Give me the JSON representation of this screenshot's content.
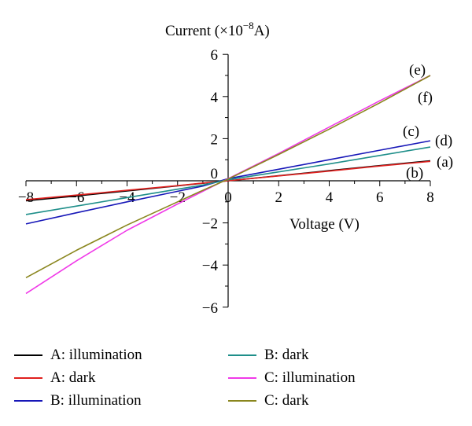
{
  "chart_data": {
    "type": "line",
    "ylabel": "Current (×10",
    "ylabel_exponent": "−8",
    "ylabel_unit": "A)",
    "xlabel": "Voltage (V)",
    "xlim": [
      -8,
      8
    ],
    "ylim": [
      -6,
      6
    ],
    "x_ticks": [
      -8,
      -6,
      -4,
      -2,
      0,
      2,
      4,
      6,
      8
    ],
    "x_tick_labels": [
      "−8",
      "−6",
      "−4",
      "−2",
      "0",
      "2",
      "4",
      "6",
      "8"
    ],
    "y_ticks": [
      -6,
      -4,
      -2,
      2,
      4,
      6
    ],
    "y_tick_labels": [
      "−6",
      "−4",
      "−2",
      "2",
      "4",
      "6"
    ],
    "y_zero_label": "0",
    "grid": false,
    "legend_position": "bottom",
    "series": [
      {
        "name": "A: illumination",
        "color": "#000000",
        "tag": "(a)",
        "x": [
          -8,
          -6,
          -4,
          -2,
          -1,
          0,
          2,
          4,
          6,
          8
        ],
        "y": [
          -0.95,
          -0.72,
          -0.48,
          -0.24,
          -0.12,
          0.0,
          0.24,
          0.48,
          0.72,
          0.95
        ]
      },
      {
        "name": "A: dark",
        "color": "#e0201e",
        "tag": "(b)",
        "x": [
          -8,
          -6,
          -4,
          -2,
          -1,
          0,
          2,
          4,
          6,
          8
        ],
        "y": [
          -0.9,
          -0.68,
          -0.45,
          -0.23,
          -0.11,
          0.0,
          0.23,
          0.46,
          0.7,
          0.92
        ]
      },
      {
        "name": "B: illumination",
        "color": "#1717b8",
        "tag": "(c)",
        "x": [
          -8,
          -6,
          -4,
          -2,
          -1,
          0,
          2,
          4,
          6,
          8
        ],
        "y": [
          -2.05,
          -1.52,
          -1.0,
          -0.5,
          -0.25,
          0.1,
          0.55,
          1.0,
          1.45,
          1.9
        ]
      },
      {
        "name": "B: dark",
        "color": "#1f8f8a",
        "tag": "(d)",
        "x": [
          -8,
          -6,
          -4,
          -2,
          -1,
          0,
          2,
          4,
          6,
          8
        ],
        "y": [
          -1.6,
          -1.2,
          -0.8,
          -0.4,
          -0.2,
          0.05,
          0.42,
          0.8,
          1.2,
          1.6
        ]
      },
      {
        "name": "C: illumination",
        "color": "#f03ae8",
        "tag": "(e)",
        "x": [
          -8,
          -6,
          -4,
          -2,
          -1,
          0,
          2,
          4,
          6,
          8
        ],
        "y": [
          -5.35,
          -3.8,
          -2.35,
          -1.1,
          -0.5,
          0.1,
          1.3,
          2.55,
          3.8,
          5.0
        ]
      },
      {
        "name": "C: dark",
        "color": "#8a861e",
        "tag": "(f)",
        "x": [
          -8,
          -6,
          -4,
          -2,
          -1,
          0,
          2,
          4,
          6,
          8
        ],
        "y": [
          -4.6,
          -3.3,
          -2.1,
          -1.0,
          -0.45,
          0.08,
          1.25,
          2.45,
          3.7,
          5.0
        ]
      }
    ]
  }
}
